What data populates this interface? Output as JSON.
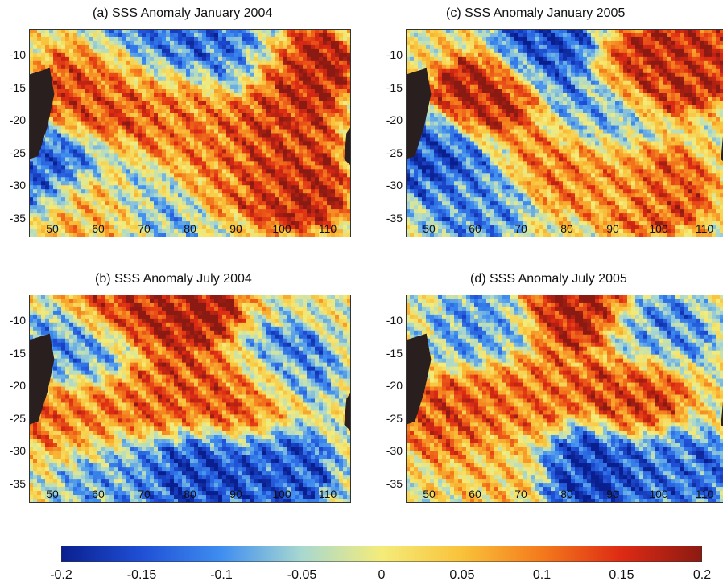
{
  "chart_data": [
    {
      "type": "heatmap",
      "title": "(a) SSS Anomaly January 2004",
      "x_ticks": [
        50,
        60,
        70,
        80,
        90,
        100,
        110
      ],
      "y_ticks": [
        -10,
        -15,
        -20,
        -25,
        -30,
        -35
      ],
      "xlim": [
        45,
        115
      ],
      "ylim": [
        -38,
        -6
      ],
      "blobs": [
        {
          "x": 63,
          "y": -13,
          "v": 0.16
        },
        {
          "x": 58,
          "y": -16,
          "v": 0.12
        },
        {
          "x": 104,
          "y": -12,
          "v": 0.18
        },
        {
          "x": 100,
          "y": -22,
          "v": 0.14
        },
        {
          "x": 103,
          "y": -31,
          "v": 0.16
        },
        {
          "x": 85,
          "y": -28,
          "v": 0.1
        },
        {
          "x": 48,
          "y": -27,
          "v": -0.14
        },
        {
          "x": 68,
          "y": -9,
          "v": -0.15
        },
        {
          "x": 90,
          "y": -9,
          "v": -0.12
        },
        {
          "x": 60,
          "y": -34,
          "v": 0.06
        },
        {
          "x": 78,
          "y": -20,
          "v": 0.1
        },
        {
          "x": 73,
          "y": -33,
          "v": -0.08
        }
      ]
    },
    {
      "type": "heatmap",
      "title": "(b) SSS Anomaly July 2004",
      "x_ticks": [
        50,
        60,
        70,
        80,
        90,
        100,
        110
      ],
      "y_ticks": [
        -10,
        -15,
        -20,
        -25,
        -30,
        -35
      ],
      "xlim": [
        45,
        115
      ],
      "ylim": [
        -38,
        -6
      ],
      "blobs": [
        {
          "x": 80,
          "y": -8,
          "v": 0.18
        },
        {
          "x": 65,
          "y": -7,
          "v": 0.16
        },
        {
          "x": 92,
          "y": -21,
          "v": 0.14
        },
        {
          "x": 75,
          "y": -22,
          "v": 0.12
        },
        {
          "x": 55,
          "y": -25,
          "v": 0.1
        },
        {
          "x": 100,
          "y": -17,
          "v": -0.12
        },
        {
          "x": 80,
          "y": -33,
          "v": -0.16
        },
        {
          "x": 100,
          "y": -33,
          "v": -0.14
        },
        {
          "x": 55,
          "y": -14,
          "v": -0.1
        },
        {
          "x": 62,
          "y": -34,
          "v": -0.08
        }
      ]
    },
    {
      "type": "heatmap",
      "title": "(c) SSS Anomaly January 2005",
      "x_ticks": [
        50,
        60,
        70,
        80,
        90,
        100,
        110
      ],
      "y_ticks": [
        -10,
        -15,
        -20,
        -25,
        -30,
        -35
      ],
      "xlim": [
        45,
        115
      ],
      "ylim": [
        -38,
        -6
      ],
      "blobs": [
        {
          "x": 62,
          "y": -16,
          "v": 0.18
        },
        {
          "x": 98,
          "y": -13,
          "v": 0.17
        },
        {
          "x": 107,
          "y": -11,
          "v": 0.15
        },
        {
          "x": 80,
          "y": -27,
          "v": 0.1
        },
        {
          "x": 100,
          "y": -31,
          "v": 0.13
        },
        {
          "x": 50,
          "y": -25,
          "v": -0.15
        },
        {
          "x": 75,
          "y": -9,
          "v": -0.16
        },
        {
          "x": 88,
          "y": -19,
          "v": -0.1
        },
        {
          "x": 60,
          "y": -33,
          "v": -0.1
        },
        {
          "x": 92,
          "y": -30,
          "v": 0.06
        }
      ]
    },
    {
      "type": "heatmap",
      "title": "(d) SSS Anomaly July 2005",
      "x_ticks": [
        50,
        60,
        70,
        80,
        90,
        100,
        110
      ],
      "y_ticks": [
        -10,
        -15,
        -20,
        -25,
        -30,
        -35
      ],
      "xlim": [
        45,
        115
      ],
      "ylim": [
        -38,
        -6
      ],
      "blobs": [
        {
          "x": 82,
          "y": -8,
          "v": 0.18
        },
        {
          "x": 95,
          "y": -21,
          "v": 0.14
        },
        {
          "x": 55,
          "y": -25,
          "v": 0.12
        },
        {
          "x": 72,
          "y": -21,
          "v": 0.1
        },
        {
          "x": 85,
          "y": -33,
          "v": -0.17
        },
        {
          "x": 105,
          "y": -33,
          "v": -0.12
        },
        {
          "x": 62,
          "y": -11,
          "v": -0.08
        },
        {
          "x": 100,
          "y": -12,
          "v": -0.1
        },
        {
          "x": 65,
          "y": -33,
          "v": 0.04
        }
      ]
    }
  ],
  "colorbar": {
    "ticks": [
      "-0.2",
      "-0.15",
      "-0.1",
      "-0.05",
      "0",
      "0.05",
      "0.1",
      "0.15",
      "0.2"
    ],
    "range": [
      -0.2,
      0.2
    ],
    "colormap": [
      "#0a1f8f",
      "#1f4fd6",
      "#3f8ef0",
      "#a8d8d0",
      "#f4ec7a",
      "#f9c23a",
      "#f47a1c",
      "#dd2a14",
      "#8b1a12"
    ]
  },
  "land_color": "#2a1f1f"
}
